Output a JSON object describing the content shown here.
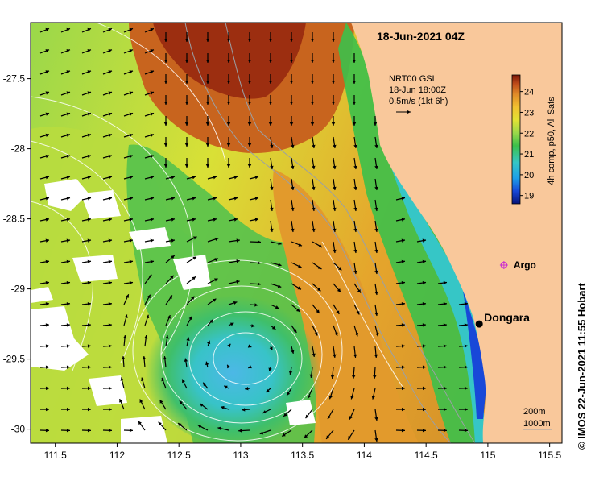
{
  "map": {
    "title": "18-Jun-2021 04Z",
    "x_ticks": [
      "111.5",
      "112",
      "112.5",
      "113",
      "113.5",
      "114",
      "114.5",
      "115",
      "115.5"
    ],
    "y_ticks": [
      "-27.5",
      "-28",
      "-28.5",
      "-29",
      "-29.5",
      "-30"
    ],
    "lon_range": [
      111.3,
      115.6
    ],
    "lat_range": [
      -30.1,
      -27.1
    ],
    "current_legend": {
      "line1": "NRT00 GSL",
      "line2": "18-Jun 18:00Z",
      "line3": "0.5m/s (1kt 6h)"
    },
    "colorbar": {
      "label": "4h comp, p50, All Sats",
      "ticks": [
        "24",
        "23",
        "22",
        "21",
        "20",
        "19"
      ],
      "range": [
        18.6,
        24.8
      ]
    },
    "places": [
      {
        "name": "Dongara",
        "lon": 114.93,
        "lat": -29.25
      },
      {
        "name": "Argo",
        "lon": 115.13,
        "lat": -28.83
      }
    ],
    "bathymetry_legend": {
      "line1": "200m",
      "line2": "1000m"
    },
    "credit": "© IMOS 22-Jun-2021 11:55 Hobart",
    "colors": {
      "land": "#f9c89b",
      "argo": "#cc33cc",
      "arrow": "#000000",
      "contour": "#ffffff"
    }
  }
}
